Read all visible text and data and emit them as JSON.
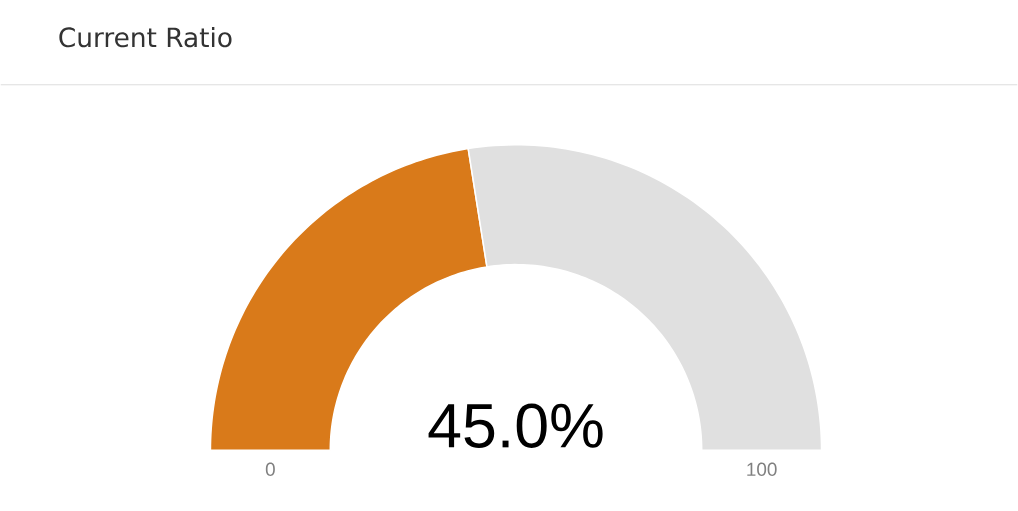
{
  "chart_data": {
    "type": "donut",
    "title": "Current Ratio",
    "categories": [
      null,
      null
    ],
    "values": [
      45,
      55
    ],
    "colors": [
      "#d97a1a",
      "#e0e0e0"
    ],
    "value_labels": [
      "45.0%",
      null
    ],
    "annotations": [
      "0",
      "100"
    ]
  }
}
